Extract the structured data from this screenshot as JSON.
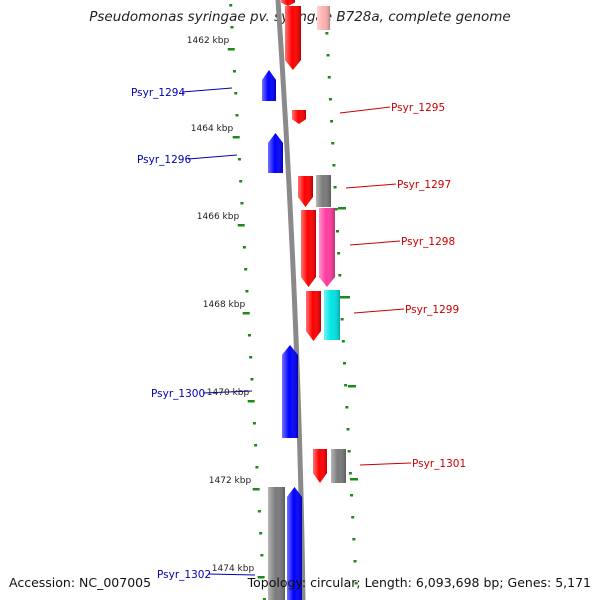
{
  "title": "Pseudomonas syringae pv. syringae B728a, complete genome",
  "footer": {
    "accession": "Accession: NC_007005",
    "summary": "Topology: circular; Length: 6,093,698 bp; Genes: 5,171"
  },
  "colors": {
    "backbone": "#8a8a8a",
    "tick": "#1a8a1a",
    "forward_label": "#cc0000",
    "reverse_label": "#0000b0",
    "gene_red": "#ff0000",
    "gene_blue": "#0000ff",
    "gene_gray": "#7a7a7a",
    "gene_magenta": "#ff3aa0",
    "gene_cyan": "#00e5e5",
    "gene_pink": "#ffb0b0"
  },
  "scale": {
    "labels": [
      "1462 kbp",
      "1464 kbp",
      "1466 kbp",
      "1468 kbp",
      "1470 kbp",
      "1472 kbp",
      "1474 kbp"
    ]
  },
  "genes": [
    {
      "label": "Psyr_1294",
      "strand": "reverse",
      "color": "gene_blue"
    },
    {
      "label": "Psyr_1295",
      "strand": "forward",
      "color": "gene_red"
    },
    {
      "label": "Psyr_1296",
      "strand": "reverse",
      "color": "gene_blue"
    },
    {
      "label": "Psyr_1297",
      "strand": "forward",
      "color": "gene_red"
    },
    {
      "label": "Psyr_1298",
      "strand": "forward",
      "color": "gene_red"
    },
    {
      "label": "Psyr_1299",
      "strand": "forward",
      "color": "gene_red"
    },
    {
      "label": "Psyr_1300",
      "strand": "reverse",
      "color": "gene_blue"
    },
    {
      "label": "Psyr_1301",
      "strand": "forward",
      "color": "gene_red"
    },
    {
      "label": "Psyr_1302",
      "strand": "reverse",
      "color": "gene_blue"
    }
  ]
}
